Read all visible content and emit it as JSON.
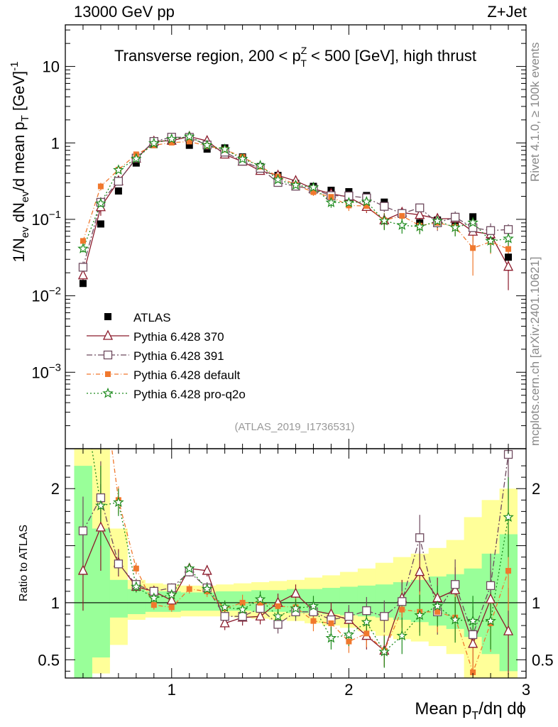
{
  "header": {
    "energy": "13000 GeV pp",
    "process": "Z+Jet",
    "rivet_label": "Rivet 4.1.0, ≥ 100k events",
    "mcplots_label": "mcplots.cern.ch [arXiv:2401.10621]"
  },
  "chart_data": {
    "type": "scatter",
    "title_parts": {
      "pre": "Transverse region, 200 < p",
      "sup": "Z",
      "sub": "T",
      "post": " < 500 [GeV], high thrust"
    },
    "analysis_id": "(ATLAS_2019_I1736531)",
    "ylabel": {
      "pre": "1/N",
      "sub1": "ev",
      "mid": " dN",
      "sub2": "ev",
      "mid2": "/d mean p",
      "sub3": "T",
      "post": " [GeV]",
      "sup": "-1"
    },
    "xlabel": {
      "pre": "Mean p",
      "sub": "T",
      "post": "/dη dϕ"
    },
    "ratio_ylabel": "Ratio to ATLAS",
    "main_yscale": "log",
    "main_ylim": [
      0.0001,
      35
    ],
    "main_yticks": [
      {
        "value": 10,
        "label": "10"
      },
      {
        "value": 1,
        "label": "1"
      },
      {
        "value": 0.1,
        "label": "10",
        "sup": "−1"
      },
      {
        "value": 0.01,
        "label": "10",
        "sup": "−2"
      },
      {
        "value": 0.001,
        "label": "10",
        "sup": "−3"
      }
    ],
    "xlim": [
      0.4,
      3.0
    ],
    "xticks": [
      {
        "value": 1,
        "label": "1"
      },
      {
        "value": 2,
        "label": "2"
      },
      {
        "value": 3,
        "label": "3"
      }
    ],
    "ratio_ylim": [
      0.34,
      2.35
    ],
    "ratio_yticks": [
      {
        "value": 2,
        "label": "2"
      },
      {
        "value": 1,
        "label": "1"
      },
      {
        "value": 0.5,
        "label": "0.5"
      }
    ],
    "x": [
      0.5,
      0.6,
      0.7,
      0.8,
      0.9,
      1.0,
      1.1,
      1.2,
      1.3,
      1.4,
      1.5,
      1.6,
      1.7,
      1.8,
      1.9,
      2.0,
      2.1,
      2.2,
      2.3,
      2.4,
      2.5,
      2.6,
      2.7,
      2.8,
      2.9
    ],
    "data": {
      "name": "ATLAS",
      "values": [
        0.0145,
        0.087,
        0.235,
        0.545,
        0.95,
        1.05,
        0.93,
        0.83,
        0.86,
        0.655,
        0.49,
        0.375,
        0.295,
        0.27,
        0.24,
        0.23,
        0.205,
        0.168,
        0.118,
        0.09,
        0.098,
        0.092,
        0.108,
        0.062,
        0.032
      ],
      "band_inner": [
        [
          0.34,
          2.2
        ],
        [
          0.52,
          1.65
        ],
        [
          0.87,
          1.2
        ],
        [
          0.9,
          1.12
        ],
        [
          0.92,
          1.1
        ],
        [
          0.92,
          1.1
        ],
        [
          0.93,
          1.09
        ],
        [
          0.93,
          1.09
        ],
        [
          0.93,
          1.1
        ],
        [
          0.93,
          1.1
        ],
        [
          0.92,
          1.11
        ],
        [
          0.92,
          1.11
        ],
        [
          0.91,
          1.12
        ],
        [
          0.91,
          1.12
        ],
        [
          0.9,
          1.13
        ],
        [
          0.89,
          1.14
        ],
        [
          0.88,
          1.15
        ],
        [
          0.87,
          1.16
        ],
        [
          0.85,
          1.18
        ],
        [
          0.83,
          1.2
        ],
        [
          0.8,
          1.23
        ],
        [
          0.77,
          1.25
        ],
        [
          0.7,
          1.3
        ],
        [
          0.55,
          1.43
        ],
        [
          0.4,
          1.6
        ]
      ],
      "band_outer": [
        [
          0.34,
          2.35
        ],
        [
          0.38,
          2.35
        ],
        [
          0.63,
          1.65
        ],
        [
          0.85,
          1.2
        ],
        [
          0.87,
          1.17
        ],
        [
          0.87,
          1.16
        ],
        [
          0.88,
          1.15
        ],
        [
          0.88,
          1.15
        ],
        [
          0.88,
          1.16
        ],
        [
          0.87,
          1.17
        ],
        [
          0.86,
          1.18
        ],
        [
          0.85,
          1.19
        ],
        [
          0.84,
          1.2
        ],
        [
          0.82,
          1.22
        ],
        [
          0.8,
          1.24
        ],
        [
          0.78,
          1.27
        ],
        [
          0.75,
          1.3
        ],
        [
          0.71,
          1.35
        ],
        [
          0.68,
          1.4
        ],
        [
          0.66,
          1.43
        ],
        [
          0.62,
          1.48
        ],
        [
          0.55,
          1.55
        ],
        [
          0.34,
          1.75
        ],
        [
          0.34,
          1.9
        ],
        [
          0.34,
          2.0
        ]
      ]
    },
    "series": [
      {
        "name": "Pythia 6.428 370",
        "color": "#8b1a2b",
        "marker": "triangle",
        "dash": "",
        "ratio": [
          1.28,
          1.66,
          1.35,
          1.14,
          1.1,
          1.02,
          1.3,
          1.28,
          0.82,
          0.87,
          0.88,
          1.0,
          1.08,
          0.93,
          0.9,
          0.85,
          0.71,
          0.58,
          1.04,
          1.27,
          1.04,
          1.11,
          0.64,
          1.03,
          0.75
        ],
        "err": [
          0.35,
          0.38,
          0.12,
          0.05,
          0.04,
          0.04,
          0.04,
          0.05,
          0.06,
          0.07,
          0.07,
          0.08,
          0.08,
          0.09,
          0.1,
          0.1,
          0.12,
          0.14,
          0.16,
          0.18,
          0.18,
          0.2,
          0.22,
          0.25,
          0.38
        ]
      },
      {
        "name": "Pythia 6.428 391",
        "color": "#6e4a5e",
        "marker": "square",
        "dash": "8,3,2,3",
        "ratio": [
          1.63,
          1.92,
          1.34,
          1.16,
          1.1,
          1.13,
          1.27,
          1.13,
          0.88,
          0.88,
          0.95,
          0.81,
          0.92,
          0.92,
          0.85,
          0.88,
          0.93,
          0.88,
          1.01,
          1.57,
          0.92,
          1.16,
          0.72,
          1.15,
          2.3
        ],
        "err": [
          0.3,
          0.32,
          0.1,
          0.05,
          0.04,
          0.04,
          0.04,
          0.05,
          0.06,
          0.06,
          0.07,
          0.08,
          0.08,
          0.09,
          0.1,
          0.1,
          0.12,
          0.14,
          0.16,
          0.2,
          0.2,
          0.22,
          0.25,
          0.28,
          0.4
        ]
      },
      {
        "name": "Pythia 6.428 default",
        "color": "#f0782d",
        "marker": "fsquare",
        "dash": "6,3,1,3",
        "ratio": [
          3.6,
          3.1,
          1.9,
          1.3,
          0.98,
          0.96,
          1.12,
          1.1,
          0.95,
          1.0,
          1.0,
          0.97,
          0.96,
          0.84,
          0.82,
          0.66,
          0.73,
          0.58,
          0.94,
          0.92,
          0.92,
          0.87,
          0.39,
          0.82,
          1.28
        ],
        "err": [
          0.3,
          0.35,
          0.12,
          0.05,
          0.04,
          0.04,
          0.04,
          0.05,
          0.06,
          0.07,
          0.07,
          0.08,
          0.08,
          0.09,
          0.1,
          0.1,
          0.12,
          0.14,
          0.16,
          0.18,
          0.18,
          0.2,
          0.22,
          0.25,
          0.35
        ]
      },
      {
        "name": "Pythia 6.428 pro-q2o",
        "color": "#1c8a1c",
        "marker": "star",
        "dash": "2,3",
        "ratio": [
          2.85,
          1.85,
          1.88,
          1.14,
          1.04,
          1.07,
          1.3,
          1.12,
          0.96,
          0.94,
          1.03,
          0.88,
          0.95,
          0.97,
          0.69,
          0.72,
          0.83,
          0.57,
          0.71,
          0.89,
          0.97,
          0.85,
          0.84,
          0.84,
          1.75
        ],
        "err": [
          0.3,
          0.35,
          0.12,
          0.05,
          0.04,
          0.04,
          0.04,
          0.05,
          0.06,
          0.07,
          0.07,
          0.08,
          0.08,
          0.09,
          0.1,
          0.1,
          0.12,
          0.14,
          0.16,
          0.18,
          0.18,
          0.2,
          0.22,
          0.25,
          0.35
        ]
      }
    ]
  }
}
